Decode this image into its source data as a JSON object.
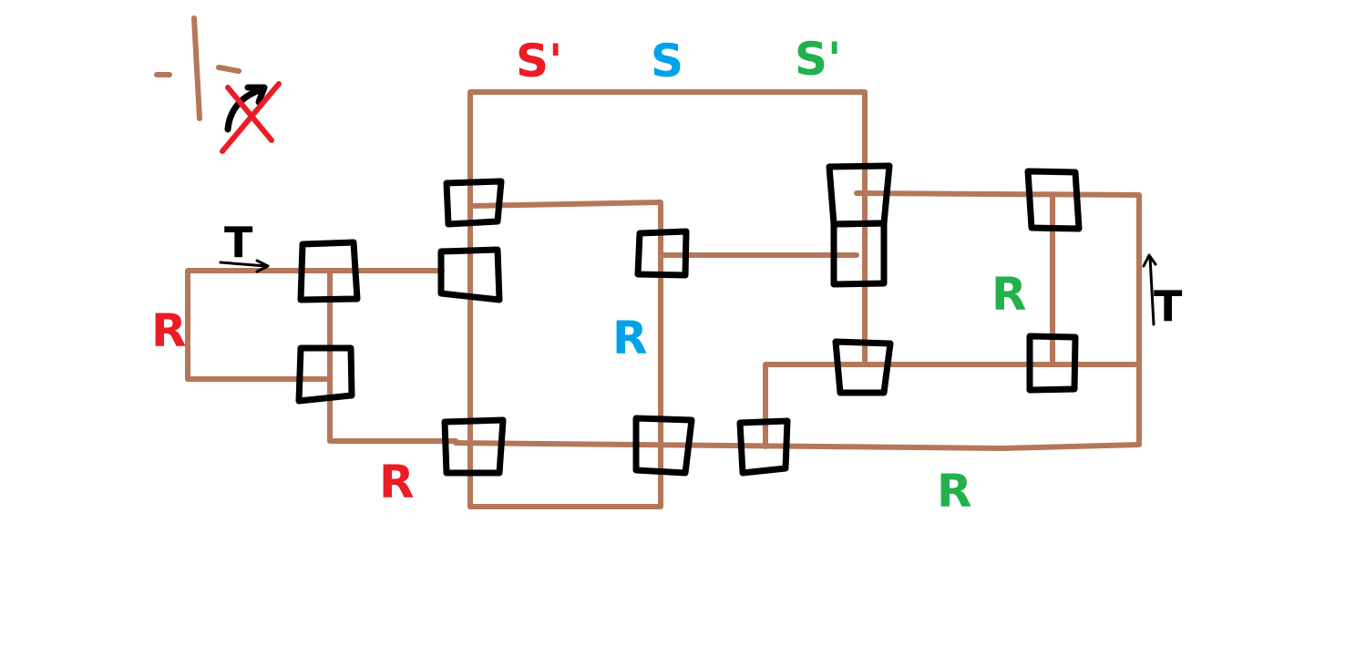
{
  "colors": {
    "wire": "#b5775a",
    "box": "#000000",
    "red": "#ec1c24",
    "blue": "#00a2e8",
    "green": "#22b14c",
    "black": "#000000"
  },
  "labels": {
    "s_prime_red": "S'",
    "s_blue": "S",
    "s_prime_green": "S'",
    "t_top_left": "T",
    "r_left_red": "R",
    "r_bottom_red": "R",
    "r_center_blue": "R",
    "r_right_green": "R",
    "t_right": "T",
    "r_bottom_green": "R"
  },
  "icons": {
    "corner_symbol": "rotation-cross-icon"
  }
}
